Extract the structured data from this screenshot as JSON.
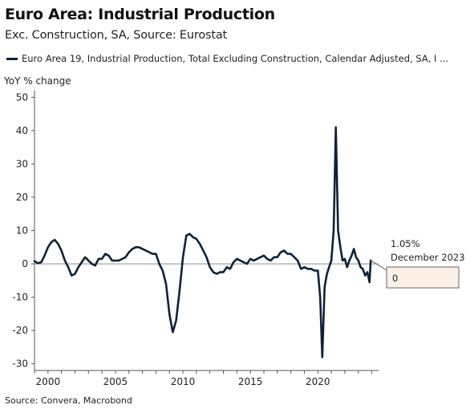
{
  "chart_data": {
    "type": "line",
    "title": "Euro Area: Industrial Production",
    "subtitle": "Exc. Construction, SA, Source: Eurostat",
    "ylabel": "YoY % change",
    "xlabel": "",
    "ylim": [
      -32,
      52
    ],
    "xlim": [
      1999.0,
      2024.5
    ],
    "y_ticks": [
      50,
      40,
      30,
      20,
      10,
      0,
      -10,
      -20,
      -30
    ],
    "x_ticks": [
      2000,
      2005,
      2010,
      2015,
      2020
    ],
    "legend_position": "top",
    "grid": false,
    "source": "Source: Convera, Macrobond",
    "series": [
      {
        "name": "Euro Area 19, Industrial Production, Total Excluding Construction, Calendar Adjusted, SA, I ...",
        "color": "#0f2236",
        "x": [
          1999.0,
          1999.25,
          1999.5,
          1999.75,
          2000.0,
          2000.25,
          2000.5,
          2000.75,
          2001.0,
          2001.25,
          2001.5,
          2001.75,
          2002.0,
          2002.25,
          2002.5,
          2002.75,
          2003.0,
          2003.25,
          2003.5,
          2003.75,
          2004.0,
          2004.25,
          2004.5,
          2004.75,
          2005.0,
          2005.25,
          2005.5,
          2005.75,
          2006.0,
          2006.25,
          2006.5,
          2006.75,
          2007.0,
          2007.25,
          2007.5,
          2007.75,
          2008.0,
          2008.25,
          2008.5,
          2008.75,
          2009.0,
          2009.25,
          2009.5,
          2009.75,
          2010.0,
          2010.25,
          2010.5,
          2010.75,
          2011.0,
          2011.25,
          2011.5,
          2011.75,
          2012.0,
          2012.25,
          2012.5,
          2012.75,
          2013.0,
          2013.25,
          2013.5,
          2013.75,
          2014.0,
          2014.25,
          2014.5,
          2014.75,
          2015.0,
          2015.25,
          2015.5,
          2015.75,
          2016.0,
          2016.25,
          2016.5,
          2016.75,
          2017.0,
          2017.25,
          2017.5,
          2017.75,
          2018.0,
          2018.25,
          2018.5,
          2018.75,
          2019.0,
          2019.25,
          2019.5,
          2019.75,
          2020.0,
          2020.17,
          2020.33,
          2020.5,
          2020.67,
          2020.83,
          2021.0,
          2021.17,
          2021.33,
          2021.5,
          2021.67,
          2021.83,
          2022.0,
          2022.17,
          2022.33,
          2022.5,
          2022.67,
          2022.83,
          2023.0,
          2023.17,
          2023.33,
          2023.5,
          2023.67,
          2023.83,
          2023.92
        ],
        "y": [
          0.8,
          0.2,
          0.5,
          2.5,
          5.0,
          6.5,
          7.2,
          6.0,
          4.0,
          1.0,
          -1.0,
          -3.5,
          -3.0,
          -1.0,
          0.5,
          2.0,
          1.0,
          0.0,
          -0.5,
          1.5,
          1.5,
          3.0,
          2.5,
          1.0,
          1.0,
          1.0,
          1.5,
          2.0,
          3.5,
          4.5,
          5.0,
          5.0,
          4.5,
          4.0,
          3.5,
          3.0,
          3.0,
          0.0,
          -2.0,
          -6.0,
          -15.0,
          -20.5,
          -17.0,
          -8.0,
          2.0,
          8.5,
          9.0,
          8.0,
          7.5,
          6.0,
          4.0,
          2.0,
          -1.0,
          -2.5,
          -3.0,
          -2.5,
          -2.5,
          -1.0,
          -1.5,
          0.5,
          1.5,
          1.0,
          0.5,
          0.0,
          1.5,
          1.0,
          1.5,
          2.0,
          2.5,
          1.5,
          1.0,
          2.0,
          2.0,
          3.5,
          4.0,
          3.0,
          3.0,
          2.0,
          1.0,
          -1.5,
          -1.0,
          -1.5,
          -1.5,
          -2.0,
          -2.0,
          -10.0,
          -28.0,
          -7.0,
          -3.0,
          -1.0,
          1.0,
          10.0,
          41.0,
          10.0,
          5.0,
          1.0,
          1.5,
          -1.0,
          1.0,
          2.5,
          4.5,
          2.0,
          1.0,
          -1.0,
          -1.5,
          -3.5,
          -2.5,
          -5.5,
          1.05
        ]
      }
    ],
    "annotation": {
      "value_label": "1.05%",
      "date_label": "December 2023",
      "box_value": "0"
    }
  }
}
